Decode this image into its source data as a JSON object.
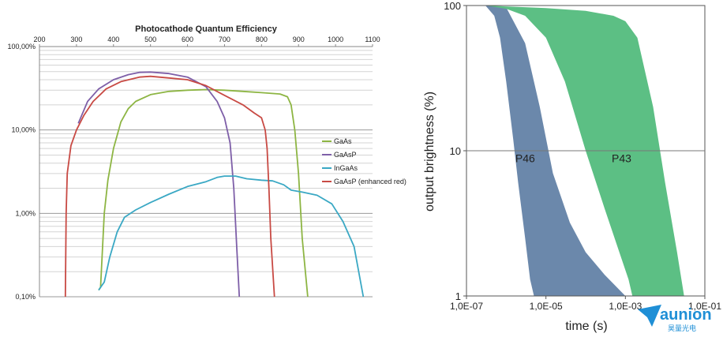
{
  "chart_data": [
    {
      "type": "line",
      "title": "Photocathode Quantum Efficiency",
      "xlabel": "",
      "ylabel": "",
      "x_scale": "linear",
      "y_scale": "log",
      "xlim": [
        200,
        1100
      ],
      "ylim": [
        0.1,
        100
      ],
      "x_ticks": [
        "200",
        "300",
        "400",
        "500",
        "600",
        "700",
        "800",
        "900",
        "1000",
        "1100"
      ],
      "y_ticks": [
        "0,10%",
        "1,00%",
        "10,00%",
        "100,00%"
      ],
      "grid": true,
      "legend_position": "right",
      "series": [
        {
          "name": "GaAs",
          "color": "#8db543",
          "points": [
            [
              360,
              0.12
            ],
            [
              365,
              0.13
            ],
            [
              375,
              1.0
            ],
            [
              385,
              2.5
            ],
            [
              400,
              6.0
            ],
            [
              420,
              12.5
            ],
            [
              440,
              18
            ],
            [
              460,
              22
            ],
            [
              500,
              26.5
            ],
            [
              550,
              29
            ],
            [
              600,
              30
            ],
            [
              650,
              30.5
            ],
            [
              700,
              30
            ],
            [
              750,
              29
            ],
            [
              800,
              28
            ],
            [
              850,
              27
            ],
            [
              870,
              25
            ],
            [
              880,
              20
            ],
            [
              890,
              10
            ],
            [
              900,
              3
            ],
            [
              910,
              0.5
            ],
            [
              925,
              0.1
            ]
          ]
        },
        {
          "name": "GaAsP",
          "color": "#7e5fa8",
          "points": [
            [
              305,
              12
            ],
            [
              330,
              22
            ],
            [
              360,
              31
            ],
            [
              400,
              40
            ],
            [
              440,
              46
            ],
            [
              470,
              49
            ],
            [
              500,
              49.5
            ],
            [
              550,
              47.5
            ],
            [
              600,
              43
            ],
            [
              650,
              33
            ],
            [
              680,
              22
            ],
            [
              700,
              14
            ],
            [
              715,
              7
            ],
            [
              725,
              2
            ],
            [
              733,
              0.4
            ],
            [
              740,
              0.1
            ]
          ]
        },
        {
          "name": "InGaAs",
          "color": "#3aa8c4",
          "points": [
            [
              360,
              0.12
            ],
            [
              375,
              0.15
            ],
            [
              390,
              0.3
            ],
            [
              410,
              0.6
            ],
            [
              430,
              0.9
            ],
            [
              460,
              1.1
            ],
            [
              500,
              1.35
            ],
            [
              550,
              1.7
            ],
            [
              600,
              2.1
            ],
            [
              650,
              2.4
            ],
            [
              680,
              2.7
            ],
            [
              700,
              2.8
            ],
            [
              730,
              2.8
            ],
            [
              760,
              2.6
            ],
            [
              800,
              2.5
            ],
            [
              830,
              2.45
            ],
            [
              860,
              2.2
            ],
            [
              880,
              1.9
            ],
            [
              910,
              1.8
            ],
            [
              950,
              1.65
            ],
            [
              990,
              1.3
            ],
            [
              1020,
              0.8
            ],
            [
              1050,
              0.4
            ],
            [
              1075,
              0.1
            ]
          ]
        },
        {
          "name": "GaAsP (enhanced red)",
          "color": "#c84a44",
          "points": [
            [
              270,
              0.1
            ],
            [
              272,
              1.0
            ],
            [
              275,
              3.0
            ],
            [
              285,
              6.5
            ],
            [
              300,
              10
            ],
            [
              320,
              15
            ],
            [
              345,
              22
            ],
            [
              380,
              31
            ],
            [
              420,
              38
            ],
            [
              470,
              43
            ],
            [
              500,
              44
            ],
            [
              550,
              42
            ],
            [
              600,
              40
            ],
            [
              650,
              34
            ],
            [
              700,
              26
            ],
            [
              750,
              20
            ],
            [
              780,
              16
            ],
            [
              800,
              14
            ],
            [
              810,
              10
            ],
            [
              815,
              6
            ],
            [
              820,
              2
            ],
            [
              825,
              0.5
            ],
            [
              835,
              0.1
            ]
          ]
        }
      ]
    },
    {
      "type": "area",
      "title": "",
      "xlabel": "time (s)",
      "ylabel": "output brightness (%)",
      "x_scale": "log",
      "y_scale": "log",
      "xlim": [
        1e-07,
        0.1
      ],
      "ylim": [
        1,
        100
      ],
      "x_ticks": [
        "1,0E-07",
        "1,0E-05",
        "1,0E-03",
        "1,0E-01"
      ],
      "y_ticks": [
        "1",
        "10",
        "100"
      ],
      "grid": true,
      "reference_line_y": 10,
      "series": [
        {
          "name": "P46",
          "color": "#6b88ab",
          "upper": [
            [
              3e-07,
              100
            ],
            [
              1e-06,
              97
            ],
            [
              3e-06,
              55
            ],
            [
              7e-06,
              20
            ],
            [
              1.5e-05,
              7
            ],
            [
              4e-05,
              3.2
            ],
            [
              0.0001,
              2
            ],
            [
              0.0003,
              1.4
            ],
            [
              0.001,
              1
            ]
          ],
          "lower": [
            [
              3e-07,
              100
            ],
            [
              5e-07,
              85
            ],
            [
              7e-07,
              60
            ],
            [
              1e-06,
              30
            ],
            [
              1.5e-06,
              12
            ],
            [
              2e-06,
              6
            ],
            [
              3e-06,
              2.5
            ],
            [
              4e-06,
              1.3
            ],
            [
              5e-06,
              1
            ]
          ]
        },
        {
          "name": "P43",
          "color": "#5cbf84",
          "upper": [
            [
              3e-07,
              100
            ],
            [
              1e-05,
              96
            ],
            [
              0.0001,
              92
            ],
            [
              0.0005,
              85
            ],
            [
              0.001,
              78
            ],
            [
              0.002,
              60
            ],
            [
              0.005,
              20
            ],
            [
              0.01,
              6
            ],
            [
              0.02,
              2
            ],
            [
              0.03,
              1
            ]
          ],
          "lower": [
            [
              3e-07,
              100
            ],
            [
              1e-06,
              95
            ],
            [
              3e-06,
              85
            ],
            [
              1e-05,
              60
            ],
            [
              3e-05,
              30
            ],
            [
              0.0001,
              10
            ],
            [
              0.0003,
              4
            ],
            [
              0.0008,
              1.8
            ],
            [
              0.0012,
              1.3
            ],
            [
              0.0015,
              1
            ]
          ]
        }
      ]
    }
  ],
  "branding": {
    "logo_text": "aunion",
    "logo_sub": "昊量光电"
  }
}
